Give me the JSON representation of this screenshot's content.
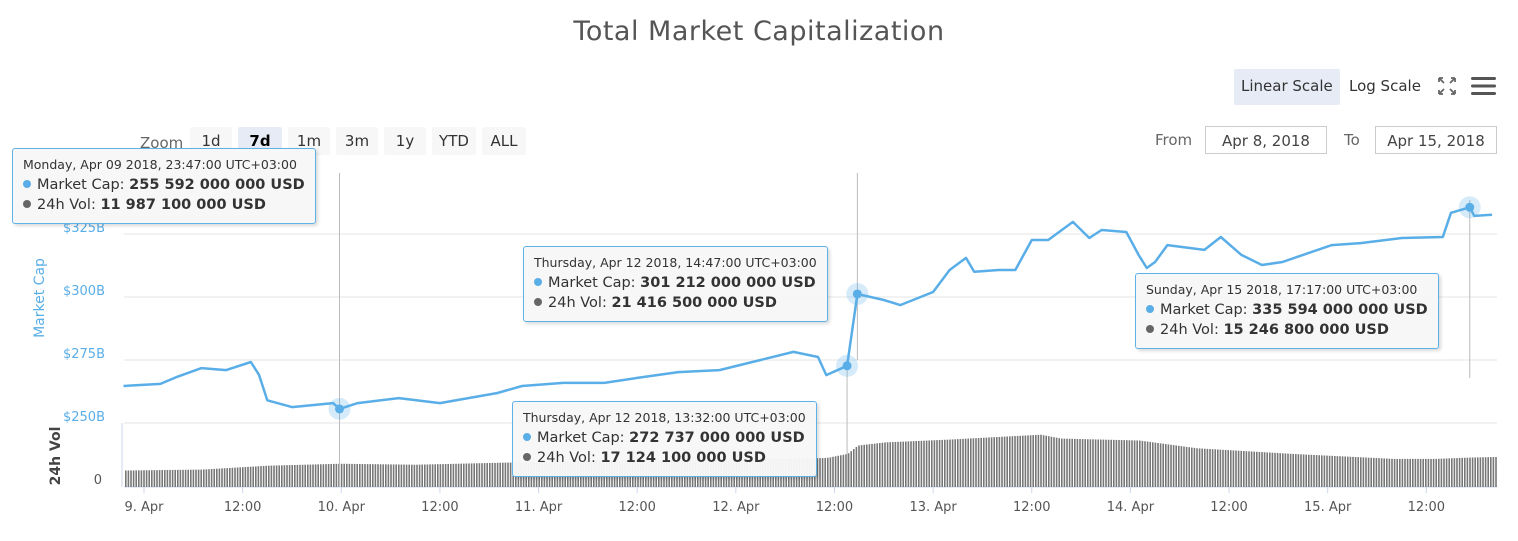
{
  "title": "Total Market Capitalization",
  "toolbar": {
    "linear_label": "Linear Scale",
    "log_label": "Log Scale",
    "active_scale": "linear",
    "fullscreen_icon": "fullscreen-icon",
    "menu_icon": "hamburger-menu-icon"
  },
  "range_selector": {
    "zoom_label": "Zoom",
    "buttons": [
      "1d",
      "7d",
      "1m",
      "3m",
      "1y",
      "YTD",
      "ALL"
    ],
    "selected": "7d",
    "from_label": "From",
    "from_value": "Apr 8, 2018",
    "to_label": "To",
    "to_value": "Apr 15, 2018"
  },
  "colors": {
    "market_cap": "#5aaee8",
    "volume": "#777777",
    "axis_label": "#5aaee8"
  },
  "tooltips": [
    {
      "header": "Monday, Apr 09 2018, 23:47:00 UTC+03:00",
      "mc_label": "Market Cap: ",
      "mc_value": "255 592 000 000 USD",
      "vol_label": "24h Vol: ",
      "vol_value": "11 987 100 000 USD"
    },
    {
      "header": "Thursday, Apr 12 2018, 14:47:00 UTC+03:00",
      "mc_label": "Market Cap: ",
      "mc_value": "301 212 000 000 USD",
      "vol_label": "24h Vol: ",
      "vol_value": "21 416 500 000 USD"
    },
    {
      "header": "Thursday, Apr 12 2018, 13:32:00 UTC+03:00",
      "mc_label": "Market Cap: ",
      "mc_value": "272 737 000 000 USD",
      "vol_label": "24h Vol: ",
      "vol_value": "17 124 100 000 USD"
    },
    {
      "header": "Sunday, Apr 15 2018, 17:17:00 UTC+03:00",
      "mc_label": "Market Cap: ",
      "mc_value": "335 594 000 000 USD",
      "vol_label": "24h Vol: ",
      "vol_value": "15 246 800 000 USD"
    }
  ],
  "chart_data": {
    "type": "line",
    "title": "Total Market Capitalization",
    "ylabel": "Market Cap",
    "ylabel2": "24h Vol",
    "yticks": [
      "$250B",
      "$275B",
      "$300B",
      "$325B"
    ],
    "ytick_values": [
      250,
      275,
      300,
      325
    ],
    "ylim": [
      250,
      337
    ],
    "vol_ticks": [
      "0"
    ],
    "vol_ylim": [
      0,
      32
    ],
    "xticks": [
      "9. Apr",
      "12:00",
      "10. Apr",
      "12:00",
      "11. Apr",
      "12:00",
      "12. Apr",
      "12:00",
      "13. Apr",
      "12:00",
      "14. Apr",
      "12:00",
      "15. Apr",
      "12:00"
    ],
    "xtick_times": [
      "2018-04-09T00:00",
      "2018-04-09T12:00",
      "2018-04-10T00:00",
      "2018-04-10T12:00",
      "2018-04-11T00:00",
      "2018-04-11T12:00",
      "2018-04-12T00:00",
      "2018-04-12T12:00",
      "2018-04-13T00:00",
      "2018-04-13T12:00",
      "2018-04-14T00:00",
      "2018-04-14T12:00",
      "2018-04-15T00:00",
      "2018-04-15T12:00"
    ],
    "xlim": [
      "2018-04-08T21:30",
      "2018-04-15T20:30"
    ],
    "grid": true,
    "series": [
      {
        "name": "Market Cap",
        "unit": "billion USD",
        "points": [
          [
            "2018-04-08T21:30",
            264.7
          ],
          [
            "2018-04-09T02:00",
            265.5
          ],
          [
            "2018-04-09T04:00",
            268.3
          ],
          [
            "2018-04-09T07:00",
            271.8
          ],
          [
            "2018-04-09T10:00",
            271.0
          ],
          [
            "2018-04-09T13:00",
            274.2
          ],
          [
            "2018-04-09T14:00",
            269.0
          ],
          [
            "2018-04-09T15:00",
            259.0
          ],
          [
            "2018-04-09T18:00",
            256.3
          ],
          [
            "2018-04-09T23:00",
            257.9
          ],
          [
            "2018-04-09T23:47",
            255.6
          ],
          [
            "2018-04-10T02:00",
            257.9
          ],
          [
            "2018-04-10T07:00",
            259.9
          ],
          [
            "2018-04-10T12:00",
            257.9
          ],
          [
            "2018-04-10T19:00",
            261.9
          ],
          [
            "2018-04-10T22:00",
            264.7
          ],
          [
            "2018-04-11T03:00",
            265.9
          ],
          [
            "2018-04-11T08:00",
            265.9
          ],
          [
            "2018-04-11T12:00",
            267.9
          ],
          [
            "2018-04-11T17:00",
            270.2
          ],
          [
            "2018-04-11T22:00",
            271.0
          ],
          [
            "2018-04-12T03:00",
            275.0
          ],
          [
            "2018-04-12T07:00",
            278.2
          ],
          [
            "2018-04-12T10:00",
            276.2
          ],
          [
            "2018-04-12T11:00",
            269.0
          ],
          [
            "2018-04-12T13:32",
            272.7
          ],
          [
            "2018-04-12T14:47",
            301.2
          ],
          [
            "2018-04-12T18:00",
            298.8
          ],
          [
            "2018-04-12T20:00",
            296.8
          ],
          [
            "2018-04-13T00:00",
            302.0
          ],
          [
            "2018-04-13T02:00",
            310.7
          ],
          [
            "2018-04-13T04:00",
            315.5
          ],
          [
            "2018-04-13T05:00",
            310.0
          ],
          [
            "2018-04-13T08:00",
            310.7
          ],
          [
            "2018-04-13T10:00",
            310.7
          ],
          [
            "2018-04-13T12:00",
            322.6
          ],
          [
            "2018-04-13T14:00",
            322.6
          ],
          [
            "2018-04-13T17:00",
            329.8
          ],
          [
            "2018-04-13T19:00",
            323.4
          ],
          [
            "2018-04-13T20:30",
            326.6
          ],
          [
            "2018-04-13T23:30",
            325.8
          ],
          [
            "2018-04-14T01:00",
            316.7
          ],
          [
            "2018-04-14T02:00",
            311.5
          ],
          [
            "2018-04-14T03:00",
            313.9
          ],
          [
            "2018-04-14T04:30",
            320.6
          ],
          [
            "2018-04-14T09:00",
            318.7
          ],
          [
            "2018-04-14T11:00",
            323.8
          ],
          [
            "2018-04-14T13:30",
            316.7
          ],
          [
            "2018-04-14T16:00",
            312.7
          ],
          [
            "2018-04-14T18:30",
            313.9
          ],
          [
            "2018-04-14T21:00",
            316.7
          ],
          [
            "2018-04-15T00:30",
            320.6
          ],
          [
            "2018-04-15T04:00",
            321.4
          ],
          [
            "2018-04-15T09:00",
            323.4
          ],
          [
            "2018-04-15T14:00",
            323.8
          ],
          [
            "2018-04-15T15:00",
            333.4
          ],
          [
            "2018-04-15T17:17",
            335.6
          ],
          [
            "2018-04-15T17:50",
            332.2
          ],
          [
            "2018-04-15T20:00",
            332.6
          ]
        ]
      },
      {
        "name": "24h Vol",
        "unit": "billion USD",
        "type": "column",
        "points": [
          [
            "2018-04-08T21:30",
            8.5
          ],
          [
            "2018-04-09T07:00",
            9.0
          ],
          [
            "2018-04-09T15:00",
            11.0
          ],
          [
            "2018-04-09T23:47",
            12.0
          ],
          [
            "2018-04-10T09:00",
            11.5
          ],
          [
            "2018-04-10T19:00",
            12.5
          ],
          [
            "2018-04-11T07:00",
            13.5
          ],
          [
            "2018-04-11T19:00",
            14.0
          ],
          [
            "2018-04-12T07:00",
            14.5
          ],
          [
            "2018-04-12T11:00",
            15.0
          ],
          [
            "2018-04-12T13:32",
            17.1
          ],
          [
            "2018-04-12T14:47",
            21.4
          ],
          [
            "2018-04-12T18:00",
            23.0
          ],
          [
            "2018-04-13T02:00",
            24.5
          ],
          [
            "2018-04-13T13:00",
            27.0
          ],
          [
            "2018-04-13T15:30",
            25.0
          ],
          [
            "2018-04-14T01:00",
            24.0
          ],
          [
            "2018-04-14T08:00",
            20.0
          ],
          [
            "2018-04-14T20:00",
            17.0
          ],
          [
            "2018-04-15T08:00",
            14.5
          ],
          [
            "2018-04-15T13:00",
            14.5
          ],
          [
            "2018-04-15T17:17",
            15.2
          ],
          [
            "2018-04-15T20:30",
            15.5
          ]
        ]
      }
    ]
  }
}
